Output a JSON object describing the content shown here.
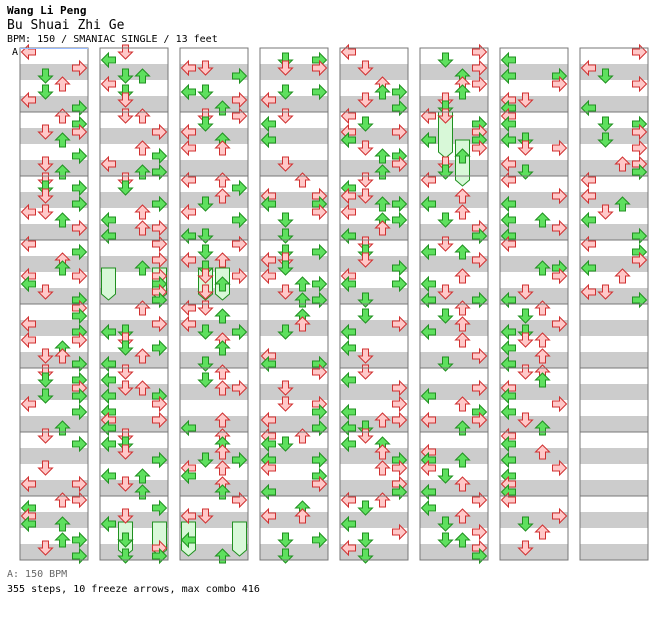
{
  "header": {
    "artist": "Wang Li Peng",
    "song": "Bu Shuai Zhi Ge",
    "info": "BPM: 150 / SMANIAC SINGLE / 13 feet",
    "marker": "A"
  },
  "footer": {
    "legend": "A: 150 BPM",
    "stats": "355 steps, 10 freeze arrows, max combo 416"
  },
  "colors": {
    "red_fill": "#ffc8c8",
    "red_stroke": "#d03030",
    "green_fill": "#5ee05e",
    "green_stroke": "#209020",
    "freeze_fill": "#d8f8d8",
    "stripe": "#cccccc",
    "border": "#777777",
    "bpm_line": "#99bbff"
  },
  "chart_data": {
    "type": "step-chart",
    "bpm": 150,
    "mode": "SMANIAC SINGLE",
    "difficulty_feet": 13,
    "measures_per_column": 8,
    "columns": 8,
    "steps": 355,
    "freeze_arrows": 10,
    "max_combo": 416
  }
}
